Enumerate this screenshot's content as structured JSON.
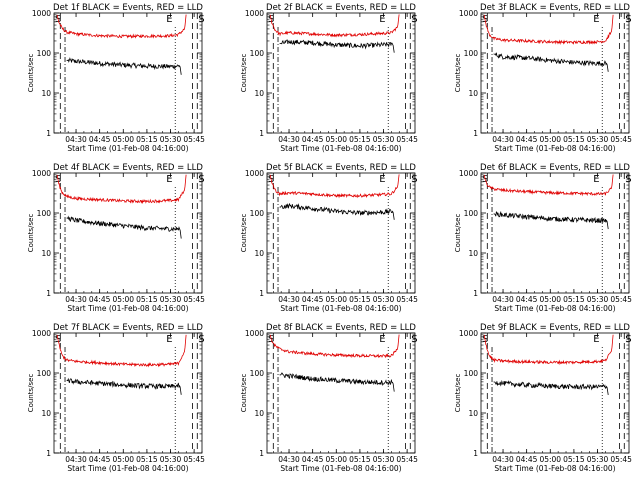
{
  "colors": {
    "events": "#000000",
    "lld": "#e00000",
    "axis": "#000000"
  },
  "shared": {
    "xlabel": "Start Time (01-Feb-08 04:16:00)",
    "ylabel": "Counts/sec",
    "xticks": [
      "04:30",
      "04:45",
      "05:00",
      "05:15",
      "05:30",
      "05:45"
    ],
    "yticks": [
      "1",
      "10",
      "100",
      "1000"
    ],
    "marker_labels": {
      "start": "S",
      "end": "E"
    }
  },
  "chart_data": [
    {
      "type": "line",
      "title": "Det 1f BLACK = Events, RED = LLD",
      "y_scale": "log",
      "ylim": [
        1,
        1000
      ],
      "series": [
        {
          "name": "Events",
          "color": "#000000",
          "x": [
            "04:24",
            "04:30",
            "04:45",
            "05:00",
            "05:15",
            "05:30",
            "05:36",
            "05:37"
          ],
          "values": [
            65,
            62,
            55,
            50,
            47,
            46,
            48,
            25
          ]
        },
        {
          "name": "LLD",
          "color": "#e00000",
          "x": [
            "04:18",
            "04:19",
            "04:21",
            "04:24",
            "04:30",
            "04:45",
            "05:00",
            "05:15",
            "05:30",
            "05:35",
            "05:39",
            "05:40"
          ],
          "values": [
            900,
            600,
            420,
            330,
            300,
            270,
            260,
            265,
            270,
            290,
            400,
            1000
          ]
        }
      ]
    },
    {
      "type": "line",
      "title": "Det 2f BLACK = Events, RED = LLD",
      "y_scale": "log",
      "ylim": [
        1,
        1000
      ],
      "series": [
        {
          "name": "Events",
          "color": "#000000",
          "x": [
            "04:24",
            "04:30",
            "04:45",
            "05:00",
            "05:15",
            "05:30",
            "05:36",
            "05:37"
          ],
          "values": [
            170,
            190,
            180,
            160,
            150,
            160,
            165,
            90
          ]
        },
        {
          "name": "LLD",
          "color": "#e00000",
          "x": [
            "04:18",
            "04:19",
            "04:21",
            "04:24",
            "04:30",
            "04:45",
            "05:00",
            "05:15",
            "05:30",
            "05:35",
            "05:39",
            "05:40"
          ],
          "values": [
            900,
            600,
            380,
            300,
            320,
            300,
            280,
            290,
            310,
            320,
            450,
            1000
          ]
        }
      ]
    },
    {
      "type": "line",
      "title": "Det 3f BLACK = Events, RED = LLD",
      "y_scale": "log",
      "ylim": [
        1,
        1000
      ],
      "series": [
        {
          "name": "Events",
          "color": "#000000",
          "x": [
            "04:24",
            "04:30",
            "04:45",
            "05:00",
            "05:15",
            "05:30",
            "05:36",
            "05:37"
          ],
          "values": [
            95,
            80,
            75,
            65,
            58,
            55,
            55,
            30
          ]
        },
        {
          "name": "LLD",
          "color": "#e00000",
          "x": [
            "04:18",
            "04:19",
            "04:21",
            "04:24",
            "04:30",
            "04:45",
            "05:00",
            "05:15",
            "05:30",
            "05:35",
            "05:39",
            "05:40"
          ],
          "values": [
            900,
            550,
            300,
            230,
            210,
            200,
            190,
            185,
            190,
            200,
            350,
            1000
          ]
        }
      ]
    },
    {
      "type": "line",
      "title": "Det 4f BLACK = Events, RED = LLD",
      "y_scale": "log",
      "ylim": [
        1,
        1000
      ],
      "series": [
        {
          "name": "Events",
          "color": "#000000",
          "x": [
            "04:24",
            "04:30",
            "04:45",
            "05:00",
            "05:15",
            "05:30",
            "05:36",
            "05:37"
          ],
          "values": [
            75,
            65,
            55,
            48,
            42,
            40,
            40,
            20
          ]
        },
        {
          "name": "LLD",
          "color": "#e00000",
          "x": [
            "04:18",
            "04:19",
            "04:21",
            "04:24",
            "04:30",
            "04:45",
            "05:00",
            "05:15",
            "05:30",
            "05:35",
            "05:39",
            "05:40"
          ],
          "values": [
            900,
            550,
            330,
            260,
            230,
            215,
            200,
            195,
            205,
            215,
            380,
            1000
          ]
        }
      ]
    },
    {
      "type": "line",
      "title": "Det 5f BLACK = Events, RED = LLD",
      "y_scale": "log",
      "ylim": [
        1,
        1000
      ],
      "series": [
        {
          "name": "Events",
          "color": "#000000",
          "x": [
            "04:24",
            "04:30",
            "04:45",
            "05:00",
            "05:15",
            "05:30",
            "05:36",
            "05:37"
          ],
          "values": [
            140,
            150,
            130,
            110,
            100,
            105,
            110,
            60
          ]
        },
        {
          "name": "LLD",
          "color": "#e00000",
          "x": [
            "04:18",
            "04:19",
            "04:21",
            "04:24",
            "04:30",
            "04:45",
            "05:00",
            "05:15",
            "05:30",
            "05:35",
            "05:39",
            "05:40"
          ],
          "values": [
            900,
            600,
            380,
            300,
            320,
            300,
            270,
            270,
            290,
            300,
            450,
            1000
          ]
        }
      ]
    },
    {
      "type": "line",
      "title": "Det 6f BLACK = Events, RED = LLD",
      "y_scale": "log",
      "ylim": [
        1,
        1000
      ],
      "series": [
        {
          "name": "Events",
          "color": "#000000",
          "x": [
            "04:24",
            "04:30",
            "04:45",
            "05:00",
            "05:15",
            "05:30",
            "05:36",
            "05:37"
          ],
          "values": [
            95,
            90,
            80,
            72,
            68,
            65,
            65,
            35
          ]
        },
        {
          "name": "LLD",
          "color": "#e00000",
          "x": [
            "04:18",
            "04:19",
            "04:21",
            "04:24",
            "04:30",
            "04:45",
            "05:00",
            "05:15",
            "05:30",
            "05:35",
            "05:39",
            "05:40"
          ],
          "values": [
            900,
            600,
            450,
            400,
            370,
            340,
            320,
            310,
            300,
            300,
            420,
            1000
          ]
        }
      ]
    },
    {
      "type": "line",
      "title": "Det 7f BLACK = Events, RED = LLD",
      "y_scale": "log",
      "ylim": [
        1,
        1000
      ],
      "series": [
        {
          "name": "Events",
          "color": "#000000",
          "x": [
            "04:24",
            "04:30",
            "04:45",
            "05:00",
            "05:15",
            "05:30",
            "05:36",
            "05:37"
          ],
          "values": [
            65,
            60,
            55,
            50,
            47,
            46,
            48,
            25
          ]
        },
        {
          "name": "LLD",
          "color": "#e00000",
          "x": [
            "04:18",
            "04:19",
            "04:21",
            "04:24",
            "04:30",
            "04:45",
            "05:00",
            "05:15",
            "05:30",
            "05:35",
            "05:39",
            "05:40"
          ],
          "values": [
            900,
            550,
            280,
            210,
            195,
            180,
            165,
            160,
            165,
            175,
            350,
            1000
          ]
        }
      ]
    },
    {
      "type": "line",
      "title": "Det 8f BLACK = Events, RED = LLD",
      "y_scale": "log",
      "ylim": [
        1,
        1000
      ],
      "series": [
        {
          "name": "Events",
          "color": "#000000",
          "x": [
            "04:24",
            "04:30",
            "04:45",
            "05:00",
            "05:15",
            "05:30",
            "05:36",
            "05:37"
          ],
          "values": [
            90,
            85,
            72,
            65,
            60,
            58,
            58,
            30
          ]
        },
        {
          "name": "LLD",
          "color": "#e00000",
          "x": [
            "04:18",
            "04:19",
            "04:21",
            "04:24",
            "04:30",
            "04:45",
            "05:00",
            "05:15",
            "05:30",
            "05:35",
            "05:39",
            "05:40"
          ],
          "values": [
            900,
            650,
            480,
            400,
            340,
            300,
            280,
            270,
            265,
            270,
            400,
            1000
          ]
        }
      ]
    },
    {
      "type": "line",
      "title": "Det 9f BLACK = Events, RED = LLD",
      "y_scale": "log",
      "ylim": [
        1,
        1000
      ],
      "series": [
        {
          "name": "Events",
          "color": "#000000",
          "x": [
            "04:24",
            "04:30",
            "04:45",
            "05:00",
            "05:15",
            "05:30",
            "05:36",
            "05:37"
          ],
          "values": [
            60,
            55,
            50,
            47,
            45,
            45,
            46,
            25
          ]
        },
        {
          "name": "LLD",
          "color": "#e00000",
          "x": [
            "04:18",
            "04:19",
            "04:21",
            "04:24",
            "04:30",
            "04:45",
            "05:00",
            "05:15",
            "05:30",
            "05:35",
            "05:39",
            "05:40"
          ],
          "values": [
            900,
            550,
            280,
            210,
            200,
            190,
            185,
            185,
            195,
            205,
            360,
            1000
          ]
        }
      ]
    }
  ]
}
